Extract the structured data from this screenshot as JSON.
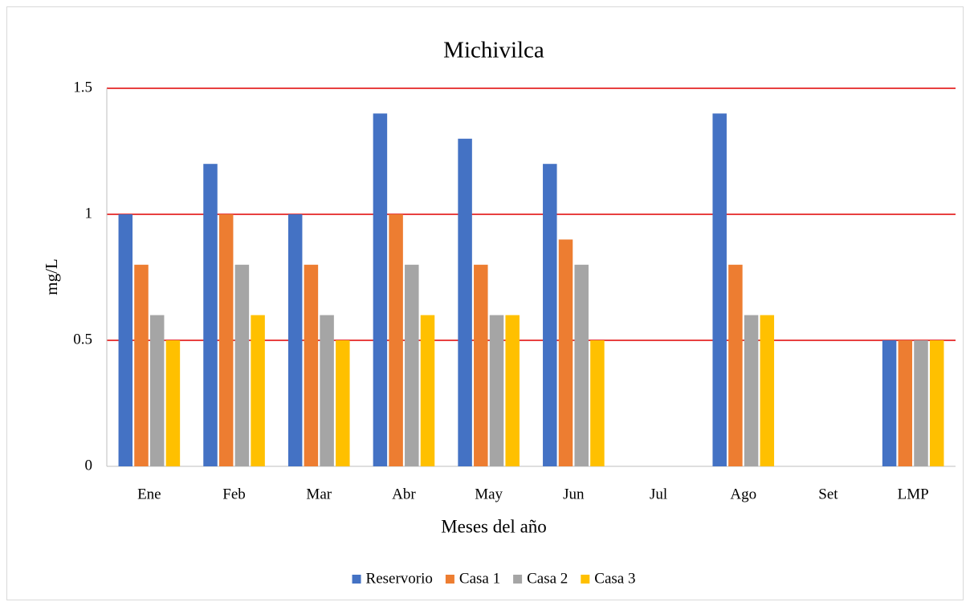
{
  "chart_data": {
    "type": "bar",
    "title": "Michivilca",
    "x_label": "Meses del año",
    "y_label": "mg/L",
    "categories": [
      "Ene",
      "Feb",
      "Mar",
      "Abr",
      "May",
      "Jun",
      "Jul",
      "Ago",
      "Set",
      "LMP"
    ],
    "series": [
      {
        "name": "Reservorio",
        "color": "#4472c4",
        "values": [
          1,
          1.2,
          1,
          1.4,
          1.3,
          1.2,
          null,
          1.4,
          null,
          0.5
        ]
      },
      {
        "name": "Casa 1",
        "color": "#ed7d31",
        "values": [
          0.8,
          1,
          0.8,
          1,
          0.8,
          0.9,
          null,
          0.8,
          null,
          0.5
        ]
      },
      {
        "name": "Casa 2",
        "color": "#a5a5a5",
        "values": [
          0.6,
          0.8,
          0.6,
          0.8,
          0.6,
          0.8,
          null,
          0.6,
          null,
          0.5
        ]
      },
      {
        "name": "Casa 3",
        "color": "#ffc000",
        "values": [
          0.5,
          0.6,
          0.5,
          0.6,
          0.6,
          0.5,
          null,
          0.6,
          null,
          0.5
        ]
      }
    ],
    "ylim": [
      0,
      1.5
    ],
    "yticks": [
      0,
      0.5,
      1,
      1.5
    ],
    "grid": true,
    "grid_color": "#e00000",
    "legend": "bottom"
  }
}
